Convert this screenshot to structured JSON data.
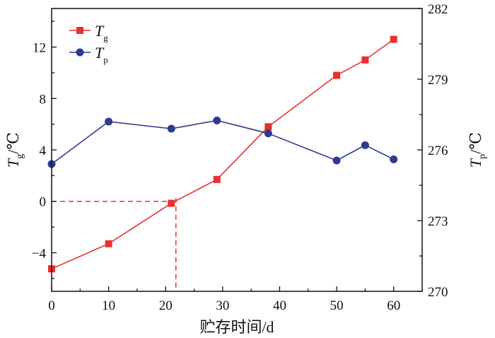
{
  "chart_data": {
    "type": "line",
    "xlabel": "贮存时间/d",
    "ylabel_left": {
      "main": "T",
      "sub": "g",
      "unit": "/℃"
    },
    "ylabel_right": {
      "main": "T",
      "sub": "p",
      "unit": "/℃"
    },
    "xlim": [
      0,
      65
    ],
    "ylim_left": [
      -7,
      15
    ],
    "ylim_right": [
      270,
      282
    ],
    "x_ticks": [
      0,
      10,
      20,
      30,
      40,
      50,
      60
    ],
    "y_left_ticks": [
      -4,
      0,
      4,
      8,
      12
    ],
    "y_right_ticks": [
      270,
      273,
      276,
      279,
      282
    ],
    "grid": false,
    "legend_position": "top-left",
    "series": [
      {
        "name": "Tg",
        "name_main": "T",
        "name_sub": "g",
        "axis": "left",
        "color": "#e8312f",
        "marker": "square",
        "x": [
          0,
          10,
          21,
          29,
          38,
          50,
          55,
          60
        ],
        "y": [
          -5.25,
          -3.3,
          -0.15,
          1.7,
          5.8,
          9.8,
          11.0,
          12.6
        ]
      },
      {
        "name": "Tp",
        "name_main": "T",
        "name_sub": "p",
        "axis": "right",
        "color": "#2e3a8c",
        "marker": "circle",
        "x": [
          0,
          10,
          21,
          29,
          38,
          50,
          55,
          60
        ],
        "y": [
          275.4,
          277.2,
          276.9,
          277.25,
          276.7,
          275.55,
          276.2,
          275.6
        ]
      }
    ],
    "annotations": [
      {
        "type": "dashed-guide",
        "x": 21.8,
        "y_left": 0,
        "color": "#e8312f"
      }
    ]
  }
}
